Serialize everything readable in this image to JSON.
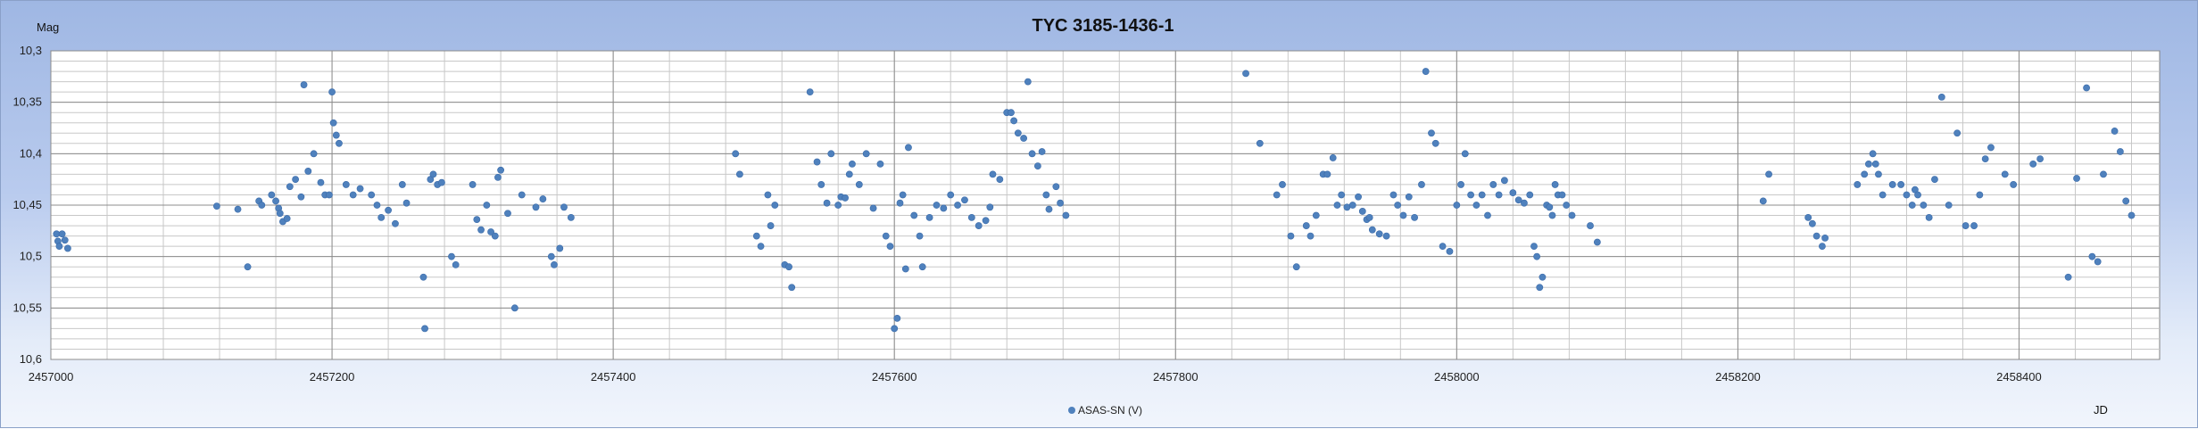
{
  "chart_data": {
    "type": "scatter",
    "title": "TYC 3185-1436-1",
    "xlabel": "JD",
    "ylabel": "Mag",
    "xlim": [
      2457000,
      2458500
    ],
    "ylim": [
      10.3,
      10.6
    ],
    "y_reversed": true,
    "grid": true,
    "x_ticks": [
      "2457000",
      "2457200",
      "2457400",
      "2457600",
      "2457800",
      "2458000",
      "2458200",
      "2458400"
    ],
    "y_ticks": [
      "10,3",
      "10,35",
      "10,4",
      "10,45",
      "10,5",
      "10,55",
      "10,6"
    ],
    "legend_position": "bottom",
    "series": [
      {
        "name": "ASAS-SN (V)",
        "color": "#4f81bd",
        "x": [
          2457004,
          2457005,
          2457006,
          2457008,
          2457010,
          2457012,
          2457118,
          2457133,
          2457140,
          2457148,
          2457150,
          2457157,
          2457160,
          2457162,
          2457163,
          2457165,
          2457168,
          2457170,
          2457174,
          2457178,
          2457180,
          2457183,
          2457187,
          2457192,
          2457195,
          2457198,
          2457200,
          2457201,
          2457203,
          2457205,
          2457210,
          2457215,
          2457220,
          2457228,
          2457232,
          2457235,
          2457240,
          2457245,
          2457250,
          2457253,
          2457265,
          2457266,
          2457270,
          2457272,
          2457275,
          2457278,
          2457285,
          2457288,
          2457300,
          2457303,
          2457306,
          2457310,
          2457313,
          2457316,
          2457318,
          2457320,
          2457325,
          2457330,
          2457335,
          2457345,
          2457350,
          2457356,
          2457358,
          2457362,
          2457365,
          2457370,
          2457487,
          2457490,
          2457502,
          2457505,
          2457510,
          2457512,
          2457515,
          2457522,
          2457525,
          2457527,
          2457540,
          2457545,
          2457548,
          2457552,
          2457555,
          2457560,
          2457562,
          2457565,
          2457568,
          2457570,
          2457575,
          2457580,
          2457585,
          2457590,
          2457594,
          2457597,
          2457600,
          2457602,
          2457604,
          2457606,
          2457608,
          2457610,
          2457614,
          2457618,
          2457620,
          2457625,
          2457630,
          2457635,
          2457640,
          2457645,
          2457650,
          2457655,
          2457660,
          2457665,
          2457668,
          2457670,
          2457675,
          2457680,
          2457683,
          2457685,
          2457688,
          2457692,
          2457695,
          2457698,
          2457702,
          2457705,
          2457708,
          2457710,
          2457715,
          2457718,
          2457722,
          2457850,
          2457860,
          2457872,
          2457876,
          2457882,
          2457886,
          2457893,
          2457896,
          2457900,
          2457905,
          2457908,
          2457912,
          2457915,
          2457918,
          2457922,
          2457926,
          2457930,
          2457933,
          2457936,
          2457938,
          2457940,
          2457945,
          2457950,
          2457955,
          2457958,
          2457962,
          2457966,
          2457970,
          2457975,
          2457978,
          2457982,
          2457985,
          2457990,
          2457995,
          2458000,
          2458003,
          2458006,
          2458010,
          2458014,
          2458018,
          2458022,
          2458026,
          2458030,
          2458034,
          2458040,
          2458044,
          2458048,
          2458052,
          2458055,
          2458057,
          2458059,
          2458061,
          2458064,
          2458066,
          2458068,
          2458070,
          2458072,
          2458075,
          2458078,
          2458082,
          2458095,
          2458100,
          2458218,
          2458222,
          2458250,
          2458253,
          2458256,
          2458260,
          2458262,
          2458285,
          2458290,
          2458293,
          2458296,
          2458298,
          2458300,
          2458303,
          2458310,
          2458316,
          2458320,
          2458324,
          2458326,
          2458328,
          2458332,
          2458336,
          2458340,
          2458345,
          2458350,
          2458356,
          2458362,
          2458368,
          2458372,
          2458376,
          2458380,
          2458390,
          2458396,
          2458410,
          2458415,
          2458435,
          2458441,
          2458448,
          2458452,
          2458456,
          2458460,
          2458468,
          2458472,
          2458476,
          2458480
        ],
        "y": [
          10.478,
          10.485,
          10.49,
          10.478,
          10.484,
          10.492,
          10.451,
          10.454,
          10.51,
          10.446,
          10.45,
          10.44,
          10.446,
          10.453,
          10.458,
          10.466,
          10.463,
          10.432,
          10.425,
          10.442,
          10.333,
          10.417,
          10.4,
          10.428,
          10.44,
          10.44,
          10.34,
          10.37,
          10.382,
          10.39,
          10.43,
          10.44,
          10.434,
          10.44,
          10.45,
          10.462,
          10.455,
          10.468,
          10.43,
          10.448,
          10.52,
          10.57,
          10.425,
          10.42,
          10.43,
          10.428,
          10.5,
          10.508,
          10.43,
          10.464,
          10.474,
          10.45,
          10.476,
          10.48,
          10.423,
          10.416,
          10.458,
          10.55,
          10.44,
          10.452,
          10.444,
          10.5,
          10.508,
          10.492,
          10.452,
          10.462,
          10.4,
          10.42,
          10.48,
          10.49,
          10.44,
          10.47,
          10.45,
          10.508,
          10.51,
          10.53,
          10.34,
          10.408,
          10.43,
          10.448,
          10.4,
          10.45,
          10.442,
          10.443,
          10.42,
          10.41,
          10.43,
          10.4,
          10.453,
          10.41,
          10.48,
          10.49,
          10.57,
          10.56,
          10.448,
          10.44,
          10.512,
          10.394,
          10.46,
          10.48,
          10.51,
          10.462,
          10.45,
          10.453,
          10.44,
          10.45,
          10.445,
          10.462,
          10.47,
          10.465,
          10.452,
          10.42,
          10.425,
          10.36,
          10.36,
          10.368,
          10.38,
          10.385,
          10.33,
          10.4,
          10.412,
          10.398,
          10.44,
          10.454,
          10.432,
          10.448,
          10.46,
          10.322,
          10.39,
          10.44,
          10.43,
          10.48,
          10.51,
          10.47,
          10.48,
          10.46,
          10.42,
          10.42,
          10.404,
          10.45,
          10.44,
          10.452,
          10.45,
          10.442,
          10.456,
          10.464,
          10.462,
          10.474,
          10.478,
          10.48,
          10.44,
          10.45,
          10.46,
          10.442,
          10.462,
          10.43,
          10.32,
          10.38,
          10.39,
          10.49,
          10.495,
          10.45,
          10.43,
          10.4,
          10.44,
          10.45,
          10.44,
          10.46,
          10.43,
          10.44,
          10.426,
          10.438,
          10.445,
          10.448,
          10.44,
          10.49,
          10.5,
          10.53,
          10.52,
          10.45,
          10.452,
          10.46,
          10.43,
          10.44,
          10.44,
          10.45,
          10.46,
          10.47,
          10.486,
          10.446,
          10.42,
          10.462,
          10.468,
          10.48,
          10.49,
          10.482,
          10.43,
          10.42,
          10.41,
          10.4,
          10.41,
          10.42,
          10.44,
          10.43,
          10.43,
          10.44,
          10.45,
          10.435,
          10.44,
          10.45,
          10.462,
          10.425,
          10.345,
          10.45,
          10.38,
          10.47,
          10.47,
          10.44,
          10.405,
          10.394,
          10.42,
          10.43,
          10.41,
          10.405,
          10.52,
          10.424,
          10.336,
          10.5,
          10.505,
          10.42,
          10.378,
          10.398,
          10.446,
          10.46
        ]
      }
    ]
  }
}
